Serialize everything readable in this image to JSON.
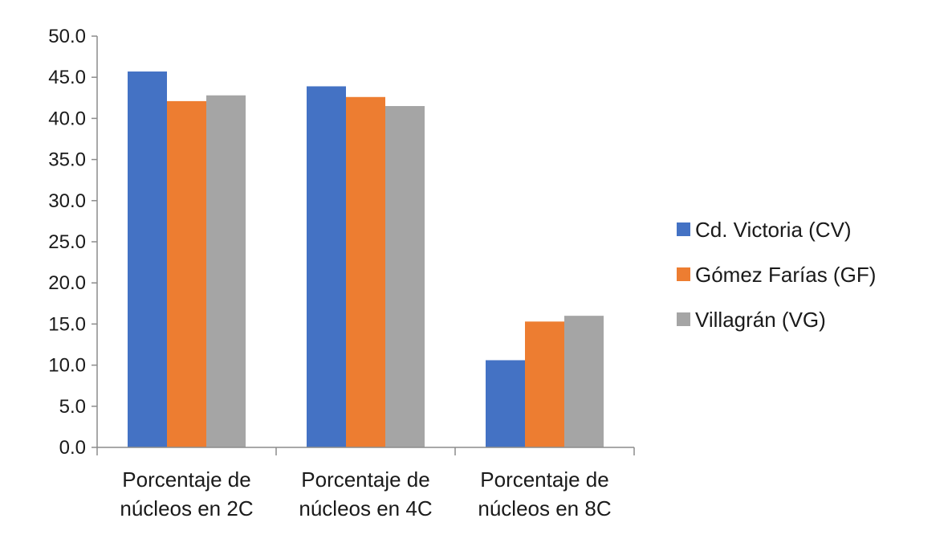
{
  "chart_data": {
    "type": "bar",
    "title": "",
    "xlabel": "",
    "ylabel": "",
    "categories": [
      [
        "Porcentaje de",
        "núcleos en 2C"
      ],
      [
        "Porcentaje de",
        "núcleos en 4C"
      ],
      [
        "Porcentaje de",
        "núcleos en 8C"
      ]
    ],
    "series": [
      {
        "name": "Cd. Victoria (CV)",
        "color": "#4472C4",
        "values": [
          45.7,
          43.9,
          10.6
        ]
      },
      {
        "name": "Gómez Farías (GF)",
        "color": "#ED7D31",
        "values": [
          42.1,
          42.6,
          15.3
        ]
      },
      {
        "name": "Villagrán (VG)",
        "color": "#A5A5A5",
        "values": [
          42.8,
          41.5,
          16.0
        ]
      }
    ],
    "ylim": [
      0,
      50
    ],
    "yticks": [
      "0.0",
      "5.0",
      "10.0",
      "15.0",
      "20.0",
      "25.0",
      "30.0",
      "35.0",
      "40.0",
      "45.0",
      "50.0"
    ],
    "grid": false,
    "legend_position": "right"
  }
}
